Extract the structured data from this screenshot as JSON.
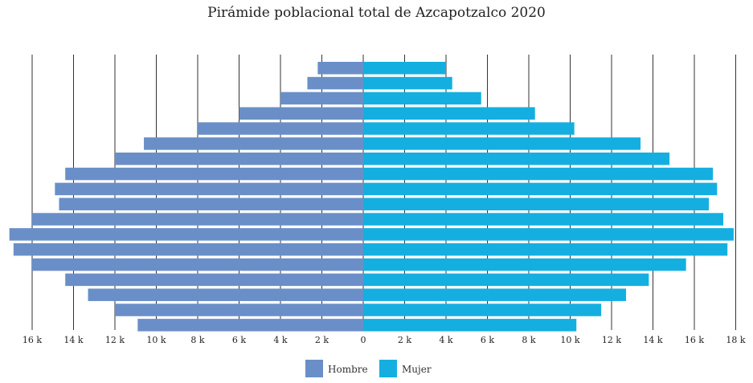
{
  "chart_data": {
    "type": "bar",
    "subtype": "population-pyramid",
    "title": "Pirámide poblacional total de Azcapotzalco 2020",
    "xlabel": "",
    "ylabel": "",
    "xlim_left": [
      0,
      17000
    ],
    "xlim_right": [
      0,
      18000
    ],
    "tick_labels_left": [
      "16 k",
      "14 k",
      "12 k",
      "10 k",
      "8 k",
      "6 k",
      "4 k",
      "2 k"
    ],
    "tick_labels_right": [
      "0",
      "2 k",
      "4 k",
      "6 k",
      "8 k",
      "10 k",
      "12 k",
      "14 k",
      "16 k",
      "18 k"
    ],
    "grid": true,
    "legend_position": "bottom-center",
    "series": [
      {
        "name": "Hombre",
        "color": "#6a8fc8",
        "values": [
          2200,
          2700,
          4000,
          6000,
          8000,
          10600,
          12000,
          14400,
          14900,
          14700,
          16000,
          17100,
          16900,
          16000,
          14400,
          13300,
          12000,
          10900
        ]
      },
      {
        "name": "Mujer",
        "color": "#14afe0",
        "values": [
          4000,
          4300,
          5700,
          8300,
          10200,
          13400,
          14800,
          16900,
          17100,
          16700,
          17400,
          17900,
          17600,
          15600,
          13800,
          12700,
          11500,
          10300
        ]
      }
    ]
  }
}
